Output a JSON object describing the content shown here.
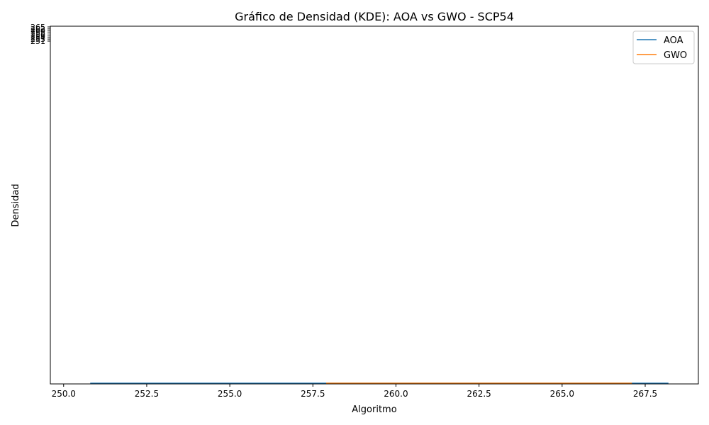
{
  "chart_data": {
    "type": "line",
    "title": "Gráfico de Densidad (KDE): AOA vs GWO - SCP54",
    "xlabel": "Algoritmo",
    "ylabel": "Densidad",
    "xlim": [
      249.6,
      269.1
    ],
    "x_ticks": [
      "250.0",
      "252.5",
      "255.0",
      "257.5",
      "260.0",
      "262.5",
      "265.0",
      "267.5"
    ],
    "y_tick_labels_overlapping": [
      "265",
      "262",
      "260",
      "258",
      "256",
      "254",
      "253",
      "251"
    ],
    "grid": false,
    "legend_position": "top-right",
    "series": [
      {
        "name": "AOA",
        "color": "#1f77b4",
        "x": [
          250.8,
          252.5,
          255.0,
          257.5,
          260.0,
          262.5,
          265.0,
          267.5,
          268.2
        ],
        "y": [
          0.0,
          0.0,
          0.0,
          0.0,
          0.0,
          0.0,
          0.0,
          0.0,
          0.0
        ]
      },
      {
        "name": "GWO",
        "color": "#ff7f0e",
        "x": [
          257.9,
          260.0,
          262.5,
          265.0,
          267.1
        ],
        "y": [
          0.0,
          0.0,
          0.0,
          0.0,
          0.0
        ]
      }
    ]
  }
}
